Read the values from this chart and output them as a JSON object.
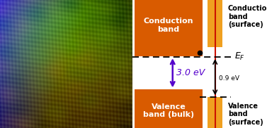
{
  "fig_width": 3.77,
  "fig_height": 1.82,
  "dpi": 100,
  "orange_color": "#D95B00",
  "amber_color": "#F0A020",
  "bulk_cb_label": "Conduction\nband",
  "bulk_vb_label": "Valence\nband (bulk)",
  "surf_cb_label": "Conduction\nband\n(surface)",
  "surf_vb_label": "Valence\nband\n(surface)",
  "gap_label": "3.0 eV",
  "small_gap_label": "0.9 eV",
  "ef_label": "$E_F$",
  "arrow_color_big": "#5500CC",
  "arrow_color_small": "#880000",
  "line_color_red": "#CC2200"
}
